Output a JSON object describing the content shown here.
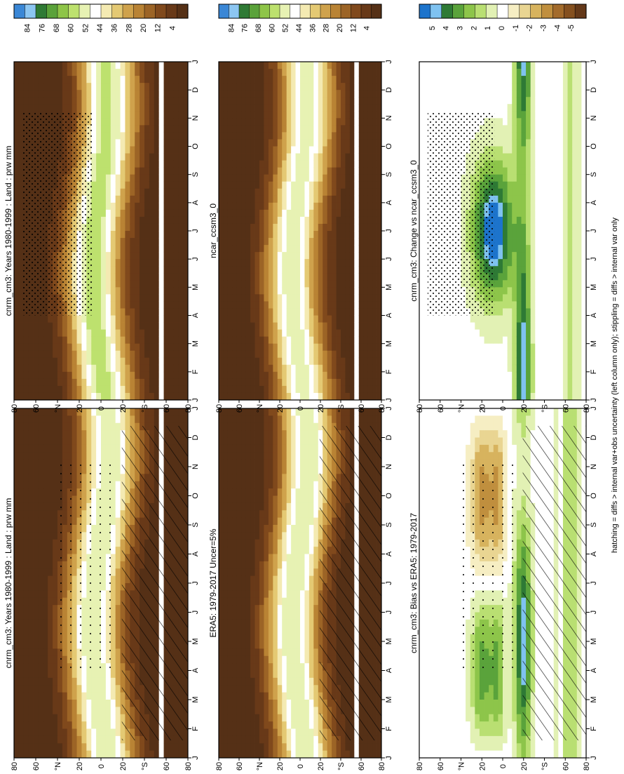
{
  "figure": {
    "footnote": "hatching = diffs > internal var+obs uncertainty (left column only); stippling = diffs > internal var only"
  },
  "chart_data": [
    {
      "type": "heatmap",
      "title": "cnrm_cm3: Years 1980-1999 : Land : prw mm",
      "x_ticks": [
        "J",
        "F",
        "M",
        "A",
        "M",
        "J",
        "J",
        "A",
        "S",
        "O",
        "N",
        "D",
        "J"
      ],
      "y_ticks": [
        "80",
        "60",
        "°N",
        "20",
        "0",
        "20",
        "°S",
        "60",
        "80"
      ],
      "colorbar": {
        "ticks": [
          "84",
          "76",
          "68",
          "60",
          "52",
          "44",
          "36",
          "28",
          "20",
          "12",
          "4"
        ]
      },
      "palette": "absolute",
      "overlay": "hatching-stippling"
    },
    {
      "type": "heatmap",
      "title": "cnrm_cm3: Years 1980-1999 : Land : prw mm",
      "x_ticks": [
        "J",
        "F",
        "M",
        "A",
        "M",
        "J",
        "J",
        "A",
        "S",
        "O",
        "N",
        "D",
        "J"
      ],
      "y_ticks": [
        "80",
        "60",
        "°N",
        "20",
        "0",
        "20",
        "°S",
        "60",
        "80"
      ],
      "colorbar": {
        "ticks": [
          "84",
          "76",
          "68",
          "60",
          "52",
          "44",
          "36",
          "28",
          "20",
          "12",
          "4"
        ]
      },
      "palette": "absolute",
      "overlay": "stippling"
    },
    {
      "type": "heatmap",
      "title": "ERA5: 1979-2017 Uncer=5%",
      "x_ticks": [
        "J",
        "F",
        "M",
        "A",
        "M",
        "J",
        "J",
        "A",
        "S",
        "O",
        "N",
        "D",
        "J"
      ],
      "y_ticks": [
        "80",
        "60",
        "°N",
        "20",
        "0",
        "20",
        "°S",
        "60",
        "80"
      ],
      "colorbar": {
        "ticks": [
          "84",
          "76",
          "68",
          "60",
          "52",
          "44",
          "36",
          "28",
          "20",
          "12",
          "4"
        ]
      },
      "palette": "absolute",
      "overlay": "hatching"
    },
    {
      "type": "heatmap",
      "title": "ncar_ccsm3_0",
      "x_ticks": [
        "J",
        "F",
        "M",
        "A",
        "M",
        "J",
        "J",
        "A",
        "S",
        "O",
        "N",
        "D",
        "J"
      ],
      "y_ticks": [
        "80",
        "60",
        "°N",
        "20",
        "0",
        "20",
        "°S",
        "60",
        "80"
      ],
      "colorbar": {
        "ticks": [
          "84",
          "76",
          "68",
          "60",
          "52",
          "44",
          "36",
          "28",
          "20",
          "12",
          "4"
        ]
      },
      "palette": "absolute",
      "overlay": "none"
    },
    {
      "type": "heatmap",
      "title": "cnrm_cm3: Bias vs ERA5: 1979-2017",
      "x_ticks": [
        "J",
        "F",
        "M",
        "A",
        "M",
        "J",
        "J",
        "A",
        "S",
        "O",
        "N",
        "D",
        "J"
      ],
      "y_ticks": [
        "80",
        "60",
        "°N",
        "20",
        "0",
        "20",
        "°S",
        "60",
        "80"
      ],
      "colorbar": {
        "ticks": [
          "5",
          "4",
          "3",
          "2",
          "1",
          "0",
          "-1",
          "-2",
          "-3",
          "-4",
          "-5"
        ]
      },
      "palette": "difference",
      "overlay": "hatching-stippling"
    },
    {
      "type": "heatmap",
      "title": "cnrm_cm3: Change vs ncar_ccsm3_0",
      "x_ticks": [
        "J",
        "F",
        "M",
        "A",
        "M",
        "J",
        "J",
        "A",
        "S",
        "O",
        "N",
        "D",
        "J"
      ],
      "y_ticks": [
        "80",
        "60",
        "°N",
        "20",
        "0",
        "20",
        "°S",
        "60",
        "80"
      ],
      "colorbar": {
        "ticks": [
          "5",
          "4",
          "3",
          "2",
          "1",
          "0",
          "-1",
          "-2",
          "-3",
          "-4",
          "-5"
        ]
      },
      "palette": "difference",
      "overlay": "stippling"
    }
  ]
}
